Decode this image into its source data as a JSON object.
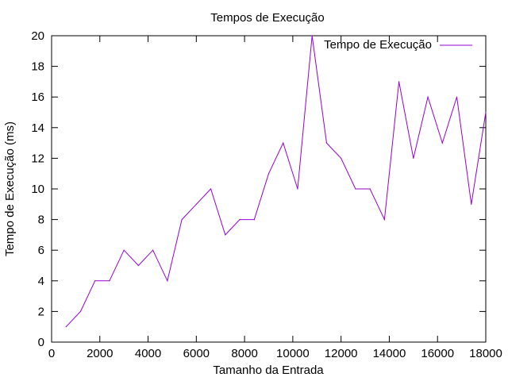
{
  "chart_data": {
    "type": "line",
    "title": "Tempos de Execução",
    "xlabel": "Tamanho da Entrada",
    "ylabel": "Tempo de Execução (ms)",
    "xlim": [
      0,
      18000
    ],
    "ylim": [
      0,
      20
    ],
    "xticks": [
      0,
      2000,
      4000,
      6000,
      8000,
      10000,
      12000,
      14000,
      16000,
      18000
    ],
    "yticks": [
      0,
      2,
      4,
      6,
      8,
      10,
      12,
      14,
      16,
      18,
      20
    ],
    "grid": false,
    "legend_position": "top-right",
    "series": [
      {
        "name": "Tempo de Execução",
        "color": "#9400d3",
        "x": [
          600,
          1200,
          1800,
          2400,
          3000,
          3600,
          4200,
          4800,
          5400,
          6000,
          6600,
          7200,
          7800,
          8400,
          9000,
          9600,
          10200,
          10800,
          11400,
          12000,
          12600,
          13200,
          13800,
          14400,
          15000,
          15600,
          16200,
          16800,
          17400,
          18000
        ],
        "y": [
          1,
          2,
          4,
          4,
          6,
          5,
          6,
          4,
          8,
          9,
          10,
          7,
          8,
          8,
          11,
          13,
          10,
          20,
          13,
          12,
          10,
          10,
          8,
          17,
          12,
          16,
          13,
          16,
          9,
          15
        ]
      }
    ]
  }
}
